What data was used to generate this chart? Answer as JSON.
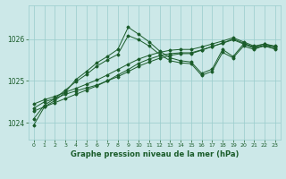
{
  "title": "Graphe pression niveau de la mer (hPa)",
  "background_color": "#cce8e8",
  "grid_color": "#99cccc",
  "line_color": "#1a5c2a",
  "xlim": [
    -0.5,
    23.5
  ],
  "ylim": [
    1023.6,
    1026.8
  ],
  "yticks": [
    1024,
    1025,
    1026
  ],
  "xticks": [
    0,
    1,
    2,
    3,
    4,
    5,
    6,
    7,
    8,
    9,
    10,
    11,
    12,
    13,
    14,
    15,
    16,
    17,
    18,
    19,
    20,
    21,
    22,
    23
  ],
  "series": [
    [
      1024.35,
      1024.5,
      1024.58,
      1024.68,
      1024.76,
      1024.83,
      1024.9,
      1025.0,
      1025.1,
      1025.22,
      1025.35,
      1025.45,
      1025.54,
      1025.61,
      1025.65,
      1025.65,
      1025.73,
      1025.82,
      1025.9,
      1025.98,
      1025.88,
      1025.78,
      1025.83,
      1025.76
    ],
    [
      1024.45,
      1024.55,
      1024.63,
      1024.73,
      1024.82,
      1024.92,
      1025.02,
      1025.14,
      1025.27,
      1025.4,
      1025.52,
      1025.61,
      1025.68,
      1025.73,
      1025.75,
      1025.75,
      1025.81,
      1025.88,
      1025.95,
      1026.03,
      1025.93,
      1025.83,
      1025.88,
      1025.81
    ],
    [
      1024.28,
      1024.38,
      1024.48,
      1024.58,
      1024.68,
      1024.78,
      1024.88,
      1025.0,
      1025.14,
      1025.27,
      1025.42,
      1025.52,
      1025.6,
      1025.65,
      1025.67,
      1025.67,
      1025.74,
      1025.82,
      1025.9,
      1026.0,
      1025.9,
      1025.8,
      1025.84,
      1025.77
    ],
    [
      1024.1,
      1024.42,
      1024.58,
      1024.78,
      1024.98,
      1025.15,
      1025.35,
      1025.5,
      1025.63,
      1026.08,
      1025.98,
      1025.83,
      1025.63,
      1025.48,
      1025.43,
      1025.41,
      1025.13,
      1025.23,
      1025.68,
      1025.55,
      1025.83,
      1025.75,
      1025.85,
      1025.81
    ],
    [
      1023.95,
      1024.38,
      1024.53,
      1024.73,
      1025.03,
      1025.22,
      1025.43,
      1025.58,
      1025.75,
      1026.28,
      1026.11,
      1025.93,
      1025.71,
      1025.55,
      1025.48,
      1025.45,
      1025.18,
      1025.28,
      1025.75,
      1025.58,
      1025.88,
      1025.81,
      1025.88,
      1025.83
    ]
  ]
}
